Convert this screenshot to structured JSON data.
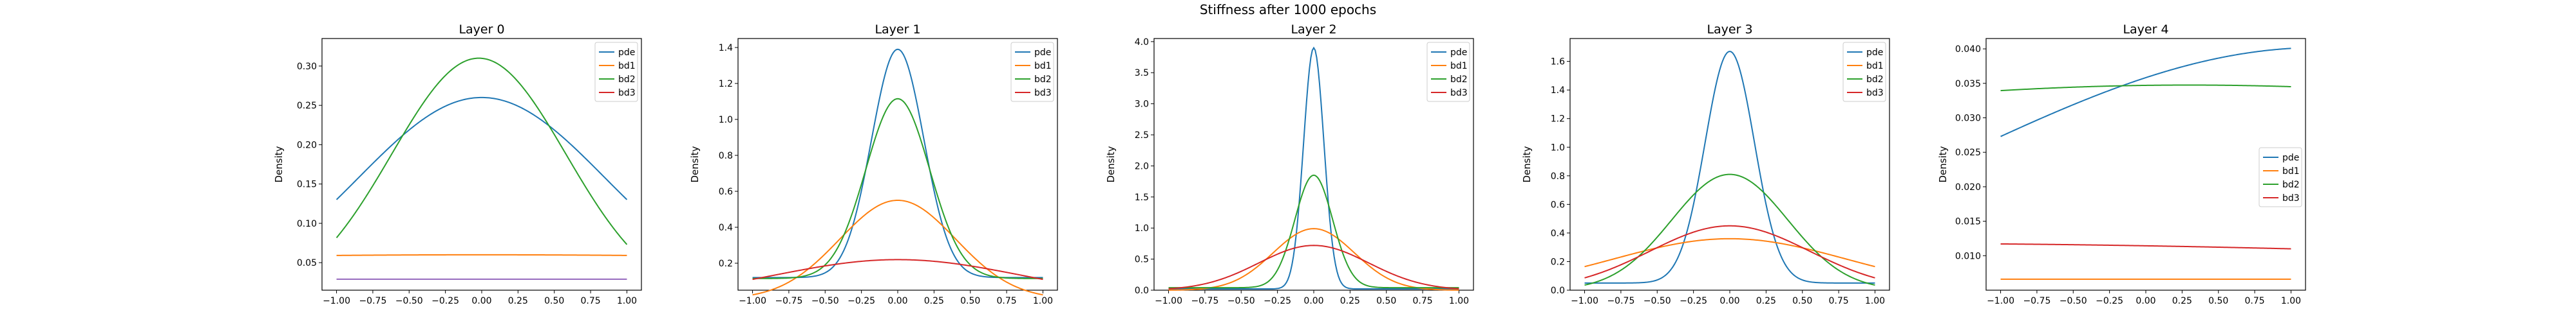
{
  "figure": {
    "title": "Stiffness after 1000 epochs"
  },
  "colors": {
    "pde": "#1f77b4",
    "bd1": "#ff7f0e",
    "bd2": "#2ca02c",
    "bd3": "#d62728"
  },
  "chart_data": [
    {
      "type": "line",
      "title": "Layer 0",
      "xlabel": "",
      "ylabel": "Density",
      "xlim": [
        -1.1,
        1.1
      ],
      "ylim": [
        0.015,
        0.335
      ],
      "xticks": [
        -1.0,
        -0.75,
        -0.5,
        -0.25,
        0.0,
        0.25,
        0.5,
        0.75,
        1.0
      ],
      "yticks": [
        0.05,
        0.1,
        0.15,
        0.2,
        0.25,
        0.3
      ],
      "legend": {
        "position": "top-right"
      },
      "series": [
        {
          "name": "pde",
          "model": "gauss",
          "mu": 0.0,
          "sigma": 0.85,
          "peak": 0.26,
          "base": 0.0
        },
        {
          "name": "bd1",
          "model": "gauss",
          "mu": 0.0,
          "sigma": 6.0,
          "peak": 0.06,
          "base": 0.0
        },
        {
          "name": "bd2",
          "model": "gauss",
          "mu": -0.02,
          "sigma": 0.6,
          "peak": 0.31,
          "base": 0.0
        },
        {
          "name": "bd3",
          "model": "gauss",
          "mu": 0.0,
          "sigma": 50.0,
          "peak": 0.029,
          "base": 0.0,
          "color": "#9467bd"
        }
      ]
    },
    {
      "type": "line",
      "title": "Layer 1",
      "xlabel": "",
      "ylabel": "Density",
      "xlim": [
        -1.1,
        1.1
      ],
      "ylim": [
        0.05,
        1.45
      ],
      "xticks": [
        -1.0,
        -0.75,
        -0.5,
        -0.25,
        0.0,
        0.25,
        0.5,
        0.75,
        1.0
      ],
      "yticks": [
        0.2,
        0.4,
        0.6,
        0.8,
        1.0,
        1.2,
        1.4
      ],
      "legend": {
        "position": "top-right"
      },
      "series": [
        {
          "name": "pde",
          "model": "gauss",
          "mu": 0.0,
          "sigma": 0.18,
          "peak": 1.27,
          "base": 0.12
        },
        {
          "name": "bd1",
          "model": "gauss",
          "mu": 0.0,
          "sigma": 0.4,
          "peak": 0.55,
          "base": 0.0
        },
        {
          "name": "bd2",
          "model": "gauss",
          "mu": 0.0,
          "sigma": 0.22,
          "peak": 1.0,
          "base": 0.115
        },
        {
          "name": "bd3",
          "model": "gauss",
          "mu": 0.0,
          "sigma": 0.85,
          "peak": 0.22,
          "base": 0.0
        }
      ]
    },
    {
      "type": "line",
      "title": "Layer 2",
      "xlabel": "",
      "ylabel": "Density",
      "xlim": [
        -1.1,
        1.1
      ],
      "ylim": [
        0.0,
        4.05
      ],
      "xticks": [
        -1.0,
        -0.75,
        -0.5,
        -0.25,
        0.0,
        0.25,
        0.5,
        0.75,
        1.0
      ],
      "yticks": [
        0.0,
        0.5,
        1.0,
        1.5,
        2.0,
        2.5,
        3.0,
        3.5,
        4.0
      ],
      "legend": {
        "position": "top-right"
      },
      "series": [
        {
          "name": "pde",
          "model": "gauss",
          "mu": 0.0,
          "sigma": 0.07,
          "peak": 3.88,
          "base": 0.02
        },
        {
          "name": "bd1",
          "model": "gauss",
          "mu": 0.0,
          "sigma": 0.28,
          "peak": 0.99,
          "base": 0.0
        },
        {
          "name": "bd2",
          "model": "gauss",
          "mu": 0.0,
          "sigma": 0.13,
          "peak": 1.81,
          "base": 0.04
        },
        {
          "name": "bd3",
          "model": "gauss",
          "mu": 0.0,
          "sigma": 0.38,
          "peak": 0.72,
          "base": 0.0
        }
      ]
    },
    {
      "type": "line",
      "title": "Layer 3",
      "xlabel": "",
      "ylabel": "Density",
      "xlim": [
        -1.1,
        1.1
      ],
      "ylim": [
        0.0,
        1.76
      ],
      "xticks": [
        -1.0,
        -0.75,
        -0.5,
        -0.25,
        0.0,
        0.25,
        0.5,
        0.75,
        1.0
      ],
      "yticks": [
        0.0,
        0.2,
        0.4,
        0.6,
        0.8,
        1.0,
        1.2,
        1.4,
        1.6
      ],
      "legend": {
        "position": "top-right"
      },
      "series": [
        {
          "name": "pde",
          "model": "gauss",
          "mu": 0.0,
          "sigma": 0.17,
          "peak": 1.62,
          "base": 0.05
        },
        {
          "name": "bd1",
          "model": "gauss",
          "mu": 0.0,
          "sigma": 0.8,
          "peak": 0.36,
          "base": 0.0
        },
        {
          "name": "bd2",
          "model": "gauss",
          "mu": 0.0,
          "sigma": 0.4,
          "peak": 0.81,
          "base": 0.0
        },
        {
          "name": "bd3",
          "model": "gauss",
          "mu": 0.0,
          "sigma": 0.55,
          "peak": 0.45,
          "base": 0.0
        }
      ]
    },
    {
      "type": "line",
      "title": "Layer 4",
      "xlabel": "",
      "ylabel": "Density",
      "xlim": [
        -1.1,
        1.1
      ],
      "ylim": [
        0.005,
        0.0415
      ],
      "xticks": [
        -1.0,
        -0.75,
        -0.5,
        -0.25,
        0.0,
        0.25,
        0.5,
        0.75,
        1.0
      ],
      "yticks": [
        0.01,
        0.015,
        0.02,
        0.025,
        0.03,
        0.035,
        0.04
      ],
      "legend": {
        "position": "center-right"
      },
      "series": [
        {
          "name": "pde",
          "model": "gauss",
          "mu": 1.2,
          "sigma": 2.5,
          "peak": 0.0402,
          "base": 0.0
        },
        {
          "name": "bd1",
          "model": "gauss",
          "mu": 0.0,
          "sigma": 30.0,
          "peak": 0.0066,
          "base": 0.0
        },
        {
          "name": "bd2",
          "model": "gauss",
          "mu": 0.3,
          "sigma": 6.0,
          "peak": 0.03475,
          "base": 0.0
        },
        {
          "name": "bd3",
          "model": "gauss",
          "mu": -2.0,
          "sigma": 8.0,
          "peak": 0.0118,
          "base": 0.0
        }
      ]
    }
  ]
}
